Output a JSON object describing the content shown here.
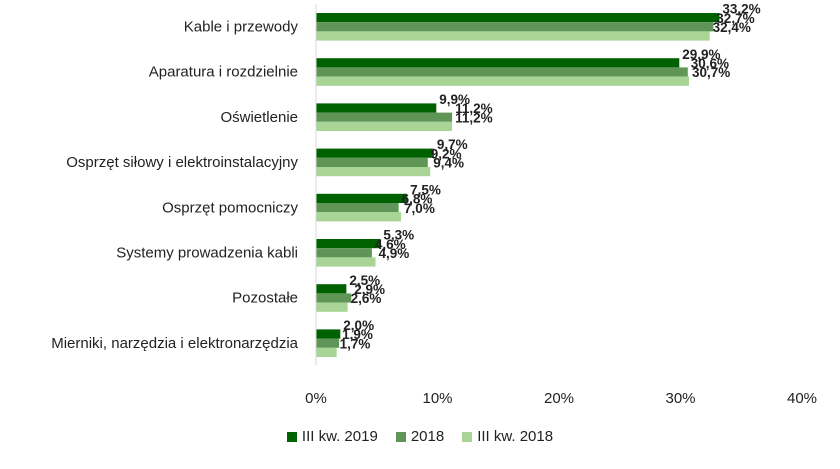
{
  "chart_data": {
    "type": "bar",
    "orientation": "horizontal",
    "categories": [
      "Kable i przewody",
      "Aparatura i rozdzielnie",
      "Oświetlenie",
      "Osprzęt siłowy i elektroinstalacyjny",
      "Osprzęt pomocniczy",
      "Systemy prowadzenia kabli",
      "Pozostałe",
      "Mierniki, narzędzia i elektronarzędzia"
    ],
    "series": [
      {
        "name": "III kw. 2019",
        "color": "#006100",
        "values": [
          33.2,
          29.9,
          9.9,
          9.7,
          7.5,
          5.3,
          2.5,
          2.0
        ],
        "labels": [
          "33,2%",
          "29,9%",
          "9,9%",
          "9,7%",
          "7,5%",
          "5,3%",
          "2,5%",
          "2,0%"
        ]
      },
      {
        "name": "2018",
        "color": "#5f9657",
        "values": [
          32.7,
          30.6,
          11.2,
          9.2,
          6.8,
          4.6,
          2.9,
          1.9
        ],
        "labels": [
          "32,7%",
          "30,6%",
          "11,2%",
          "9,2%",
          "6,8%",
          "4,6%",
          "2,9%",
          "1,9%"
        ]
      },
      {
        "name": "III kw. 2018",
        "color": "#a8d595",
        "values": [
          32.4,
          30.7,
          11.2,
          9.4,
          7.0,
          4.9,
          2.6,
          1.7
        ],
        "labels": [
          "32,4%",
          "30,7%",
          "11,2%",
          "9,4%",
          "7,0%",
          "4,9%",
          "2,6%",
          "1,7%"
        ]
      }
    ],
    "xlim": [
      0,
      40
    ],
    "xticks": [
      0,
      10,
      20,
      30,
      40
    ],
    "xtick_labels": [
      "0%",
      "10%",
      "20%",
      "30%",
      "40%"
    ],
    "grid": false,
    "legend_position": "bottom"
  }
}
